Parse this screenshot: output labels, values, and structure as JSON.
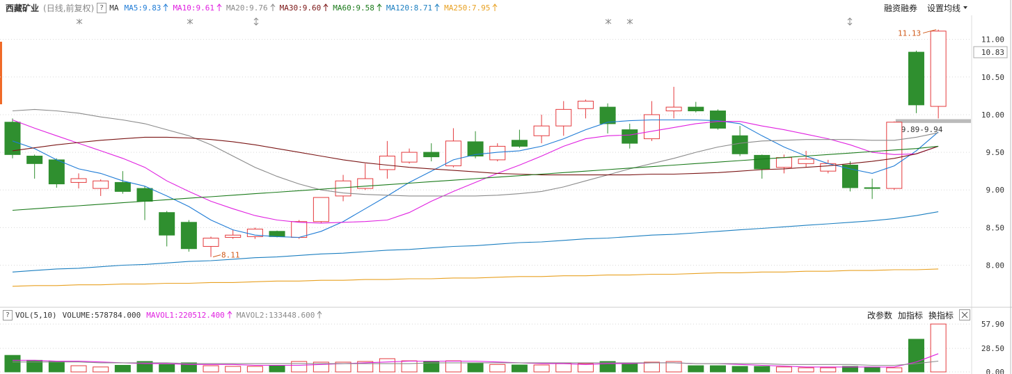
{
  "header": {
    "stock_name": "西藏矿业",
    "mode": "(日线,前复权)",
    "help": "?",
    "ma_label": "MA",
    "right_links": [
      "融资融券",
      "设置均线"
    ]
  },
  "volume_header": {
    "help": "?",
    "name": "VOL(5,10)",
    "volume": "VOLUME:578784.000",
    "right_links": [
      "改参数",
      "加指标",
      "换指标"
    ]
  },
  "chart_data": [
    {
      "type": "candlestick",
      "open": [
        9.9,
        9.45,
        9.4,
        9.1,
        9.02,
        9.1,
        9.02,
        8.7,
        8.57,
        8.25,
        8.37,
        8.38,
        8.45,
        8.37,
        8.58,
        8.92,
        9.02,
        9.27,
        9.37,
        9.5,
        9.32,
        9.64,
        9.4,
        9.66,
        9.72,
        9.85,
        10.08,
        10.1,
        9.8,
        9.68,
        10.05,
        10.1,
        10.05,
        9.72,
        9.46,
        9.3,
        9.35,
        9.25,
        9.33,
        9.03,
        9.02,
        10.83,
        10.11
      ],
      "high": [
        9.95,
        9.47,
        9.42,
        9.22,
        9.14,
        9.25,
        9.05,
        8.72,
        8.6,
        8.38,
        8.47,
        8.5,
        8.46,
        8.6,
        8.9,
        9.2,
        9.35,
        9.65,
        9.55,
        9.62,
        9.82,
        9.78,
        9.62,
        9.8,
        10.0,
        10.18,
        10.2,
        10.15,
        9.88,
        10.18,
        10.37,
        10.17,
        10.07,
        9.85,
        9.47,
        9.47,
        9.52,
        9.4,
        9.38,
        9.15,
        9.91,
        10.85,
        11.13
      ],
      "low": [
        9.42,
        9.15,
        9.03,
        9.02,
        8.92,
        8.95,
        8.6,
        8.25,
        8.18,
        8.11,
        8.35,
        8.35,
        8.37,
        8.35,
        8.56,
        8.85,
        9.0,
        9.15,
        9.35,
        9.38,
        9.3,
        9.42,
        9.38,
        9.56,
        9.62,
        9.72,
        9.95,
        9.75,
        9.55,
        9.65,
        9.95,
        10.03,
        9.8,
        9.45,
        9.15,
        9.22,
        9.3,
        9.22,
        8.98,
        8.88,
        9.0,
        10.02,
        9.95
      ],
      "close": [
        9.47,
        9.35,
        9.08,
        9.15,
        9.12,
        8.98,
        8.85,
        8.4,
        8.22,
        8.36,
        8.4,
        8.48,
        8.38,
        8.58,
        8.9,
        9.12,
        9.15,
        9.45,
        9.5,
        9.44,
        9.65,
        9.45,
        9.58,
        9.58,
        9.85,
        10.07,
        10.18,
        9.88,
        9.62,
        10.0,
        10.1,
        10.05,
        9.82,
        9.48,
        9.28,
        9.43,
        9.41,
        9.35,
        9.03,
        9.02,
        9.9,
        10.13,
        11.11
      ],
      "up_color": "#e4393c",
      "down_color": "#2f8f2f",
      "series": [
        {
          "name": "MA5:9.83",
          "color": "#1e7bd6",
          "values": [
            9.65,
            9.55,
            9.4,
            9.28,
            9.22,
            9.12,
            9.05,
            8.92,
            8.78,
            8.6,
            8.47,
            8.4,
            8.38,
            8.37,
            8.45,
            8.58,
            8.75,
            8.92,
            9.1,
            9.25,
            9.4,
            9.47,
            9.5,
            9.52,
            9.58,
            9.68,
            9.8,
            9.9,
            9.92,
            9.93,
            9.93,
            9.93,
            9.92,
            9.88,
            9.72,
            9.57,
            9.45,
            9.35,
            9.28,
            9.22,
            9.32,
            9.52,
            9.77
          ]
        },
        {
          "name": "MA10:9.61",
          "color": "#e020e0",
          "values": [
            9.93,
            9.82,
            9.72,
            9.62,
            9.52,
            9.42,
            9.3,
            9.12,
            8.98,
            8.85,
            8.75,
            8.66,
            8.6,
            8.57,
            8.56,
            8.57,
            8.58,
            8.6,
            8.7,
            8.85,
            8.98,
            9.1,
            9.22,
            9.33,
            9.45,
            9.58,
            9.68,
            9.72,
            9.73,
            9.78,
            9.83,
            9.88,
            9.91,
            9.91,
            9.85,
            9.8,
            9.74,
            9.68,
            9.6,
            9.5,
            9.47,
            9.48,
            9.58
          ]
        },
        {
          "name": "MA20:9.76",
          "color": "#8a8a8a",
          "values": [
            10.05,
            10.07,
            10.05,
            10.02,
            9.97,
            9.93,
            9.88,
            9.8,
            9.72,
            9.6,
            9.45,
            9.3,
            9.18,
            9.08,
            9.0,
            8.96,
            8.94,
            8.93,
            8.92,
            8.92,
            8.92,
            8.92,
            8.93,
            8.95,
            8.98,
            9.04,
            9.12,
            9.2,
            9.28,
            9.35,
            9.42,
            9.5,
            9.57,
            9.62,
            9.65,
            9.66,
            9.67,
            9.67,
            9.67,
            9.66,
            9.66,
            9.7,
            9.76
          ]
        },
        {
          "name": "MA30:9.60",
          "color": "#7a1414",
          "values": [
            9.52,
            9.56,
            9.6,
            9.63,
            9.66,
            9.68,
            9.7,
            9.7,
            9.69,
            9.67,
            9.64,
            9.6,
            9.55,
            9.5,
            9.45,
            9.4,
            9.36,
            9.33,
            9.3,
            9.28,
            9.26,
            9.24,
            9.22,
            9.21,
            9.2,
            9.2,
            9.2,
            9.2,
            9.2,
            9.21,
            9.21,
            9.22,
            9.23,
            9.25,
            9.27,
            9.28,
            9.3,
            9.32,
            9.35,
            9.38,
            9.42,
            9.48,
            9.58
          ]
        },
        {
          "name": "MA60:9.58",
          "color": "#1a7a1a",
          "values": [
            8.73,
            8.75,
            8.77,
            8.79,
            8.81,
            8.83,
            8.85,
            8.87,
            8.89,
            8.91,
            8.93,
            8.95,
            8.97,
            8.99,
            9.01,
            9.03,
            9.05,
            9.07,
            9.09,
            9.11,
            9.13,
            9.15,
            9.17,
            9.19,
            9.21,
            9.23,
            9.25,
            9.27,
            9.29,
            9.31,
            9.33,
            9.35,
            9.37,
            9.39,
            9.41,
            9.43,
            9.45,
            9.47,
            9.49,
            9.51,
            9.53,
            9.55,
            9.58
          ]
        },
        {
          "name": "MA120:8.71",
          "color": "#1a7ec0",
          "values": [
            7.91,
            7.93,
            7.95,
            7.96,
            7.98,
            8.0,
            8.01,
            8.03,
            8.05,
            8.06,
            8.08,
            8.1,
            8.11,
            8.13,
            8.15,
            8.16,
            8.18,
            8.2,
            8.21,
            8.23,
            8.25,
            8.26,
            8.28,
            8.3,
            8.31,
            8.33,
            8.35,
            8.36,
            8.38,
            8.4,
            8.41,
            8.43,
            8.45,
            8.47,
            8.49,
            8.51,
            8.53,
            8.55,
            8.57,
            8.59,
            8.62,
            8.66,
            8.71
          ]
        },
        {
          "name": "MA250:7.95",
          "color": "#e8a020",
          "values": [
            7.72,
            7.73,
            7.73,
            7.74,
            7.74,
            7.75,
            7.75,
            7.76,
            7.76,
            7.77,
            7.77,
            7.78,
            7.79,
            7.79,
            7.8,
            7.8,
            7.81,
            7.81,
            7.82,
            7.82,
            7.83,
            7.83,
            7.84,
            7.85,
            7.85,
            7.86,
            7.86,
            7.87,
            7.87,
            7.88,
            7.88,
            7.89,
            7.9,
            7.9,
            7.91,
            7.91,
            7.92,
            7.92,
            7.93,
            7.93,
            7.94,
            7.94,
            7.95
          ]
        }
      ],
      "ylim": [
        7.46,
        11.32
      ],
      "yticks": [
        {
          "value": 11,
          "label": "11.00"
        },
        {
          "value": 10.5,
          "label": "10.50"
        },
        {
          "value": 10,
          "label": "10.00"
        },
        {
          "value": 9.5,
          "label": "9.50"
        },
        {
          "value": 9,
          "label": "9.00"
        },
        {
          "value": 8.5,
          "label": "8.50"
        },
        {
          "value": 8,
          "label": "8.00"
        }
      ],
      "grid": true,
      "price_marker": {
        "value": 10.83,
        "label": "10.83"
      },
      "range": {
        "label": "9.89-9.94",
        "lo": 9.89,
        "hi": 9.94
      }
    },
    {
      "type": "bar",
      "values": [
        20,
        14,
        13,
        7.5,
        6,
        8,
        12.6,
        9,
        11,
        7.5,
        6.7,
        6.7,
        7.5,
        12.6,
        11.8,
        11.8,
        12.6,
        16,
        13.4,
        12.6,
        13.4,
        11,
        9,
        8.4,
        8.4,
        10,
        10,
        12.6,
        10,
        11.8,
        12.6,
        7.5,
        7.5,
        6.7,
        6.7,
        6,
        5,
        5,
        6.7,
        6,
        5,
        39.5,
        57.9
      ],
      "series": [
        {
          "name": "MAVOL1:220512.400",
          "color": "#e020e0",
          "values": [
            14,
            14,
            13,
            13,
            12,
            11,
            10,
            10,
            9,
            9,
            9,
            8,
            8,
            8,
            9,
            10,
            11,
            12,
            13,
            13,
            13,
            13,
            12,
            11,
            10,
            10,
            9,
            10,
            10,
            11,
            11,
            10,
            10,
            9,
            8,
            7,
            6,
            6,
            6,
            6,
            6,
            12,
            22
          ]
        },
        {
          "name": "MAVOL2:133448.600",
          "color": "#8a8a8a",
          "values": [
            12,
            12,
            12,
            12,
            11,
            11,
            11,
            11,
            10,
            10,
            10,
            10,
            10,
            10,
            10,
            10,
            10,
            10,
            10,
            11,
            11,
            11,
            11,
            11,
            11,
            11,
            11,
            11,
            11,
            11,
            11,
            10,
            10,
            10,
            10,
            9,
            9,
            9,
            9,
            8,
            8,
            10,
            13
          ]
        }
      ],
      "ylim": [
        0,
        60.5
      ],
      "yticks": [
        {
          "value": 57.9,
          "label": "57.90"
        },
        {
          "value": 28.5,
          "label": "28.50"
        },
        {
          "value": 0,
          "label": "0.00"
        }
      ],
      "grid": true
    }
  ]
}
